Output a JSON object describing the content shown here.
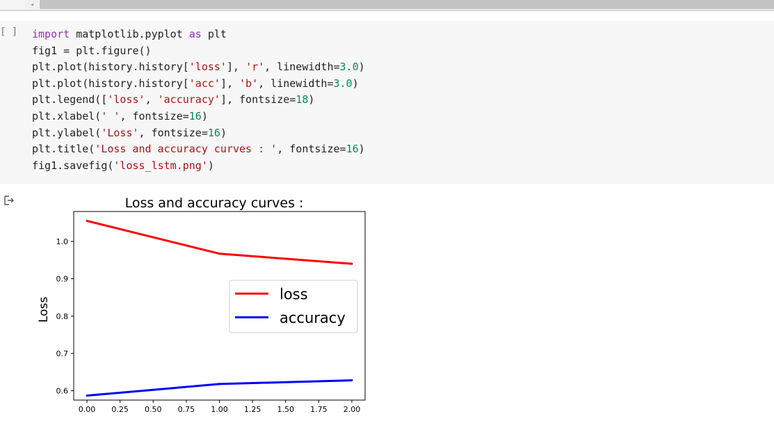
{
  "scroll": {
    "left_arrow": "◂"
  },
  "cell": {
    "run_indicator": "[ ]",
    "code_lines": [
      [
        {
          "t": "import",
          "c": "kw"
        },
        {
          "t": " matplotlib.pyplot "
        },
        {
          "t": "as",
          "c": "kw"
        },
        {
          "t": " plt"
        }
      ],
      [
        {
          "t": "fig1 = plt.figure()"
        }
      ],
      [
        {
          "t": "plt.plot(history.history["
        },
        {
          "t": "'loss'",
          "c": "str"
        },
        {
          "t": "], "
        },
        {
          "t": "'r'",
          "c": "str"
        },
        {
          "t": ", linewidth="
        },
        {
          "t": "3.0",
          "c": "num"
        },
        {
          "t": ")"
        }
      ],
      [
        {
          "t": "plt.plot(history.history["
        },
        {
          "t": "'acc'",
          "c": "str"
        },
        {
          "t": "], "
        },
        {
          "t": "'b'",
          "c": "str"
        },
        {
          "t": ", linewidth="
        },
        {
          "t": "3.0",
          "c": "num"
        },
        {
          "t": ")"
        }
      ],
      [
        {
          "t": "plt.legend(["
        },
        {
          "t": "'loss'",
          "c": "str"
        },
        {
          "t": ", "
        },
        {
          "t": "'accuracy'",
          "c": "str"
        },
        {
          "t": "], fontsize="
        },
        {
          "t": "18",
          "c": "num"
        },
        {
          "t": ")"
        }
      ],
      [
        {
          "t": "plt.xlabel("
        },
        {
          "t": "' '",
          "c": "str"
        },
        {
          "t": ", fontsize="
        },
        {
          "t": "16",
          "c": "num"
        },
        {
          "t": ")"
        }
      ],
      [
        {
          "t": "plt.ylabel("
        },
        {
          "t": "'Loss'",
          "c": "str"
        },
        {
          "t": ", fontsize="
        },
        {
          "t": "16",
          "c": "num"
        },
        {
          "t": ")"
        }
      ],
      [
        {
          "t": "plt.title("
        },
        {
          "t": "'Loss and accuracy curves : '",
          "c": "str"
        },
        {
          "t": ", fontsize="
        },
        {
          "t": "16",
          "c": "num"
        },
        {
          "t": ")"
        }
      ],
      [
        {
          "t": "fig1.savefig("
        },
        {
          "t": "'loss_lstm.png'",
          "c": "str"
        },
        {
          "t": ")"
        }
      ]
    ]
  },
  "output": {
    "icon": "output-arrow-icon"
  },
  "colors": {
    "keyword": "#9b2bbd",
    "string": "#a31515",
    "number": "#098658",
    "loss": "#ff0000",
    "accuracy": "#0000ff"
  },
  "chart_data": {
    "type": "line",
    "title": "Loss and accuracy curves :",
    "xlabel": " ",
    "ylabel": "Loss",
    "xlim": [
      -0.1,
      2.1
    ],
    "ylim": [
      0.575,
      1.08
    ],
    "x_ticks": [
      0,
      0.25,
      0.5,
      0.75,
      1.0,
      1.25,
      1.5,
      1.75,
      2.0
    ],
    "x_tick_labels": [
      "0.00",
      "0.25",
      "0.50",
      "0.75",
      "1.00",
      "1.25",
      "1.50",
      "1.75",
      "2.00"
    ],
    "y_ticks": [
      0.6,
      0.7,
      0.8,
      0.9,
      1.0
    ],
    "y_tick_labels": [
      "0.6",
      "0.7",
      "0.8",
      "0.9",
      "1.0"
    ],
    "x": [
      0,
      1,
      2
    ],
    "series": [
      {
        "name": "loss",
        "color": "#ff0000",
        "values": [
          1.055,
          0.967,
          0.94
        ]
      },
      {
        "name": "accuracy",
        "color": "#0000ff",
        "values": [
          0.587,
          0.618,
          0.628
        ]
      }
    ],
    "legend_position": "center-right",
    "grid": false
  }
}
